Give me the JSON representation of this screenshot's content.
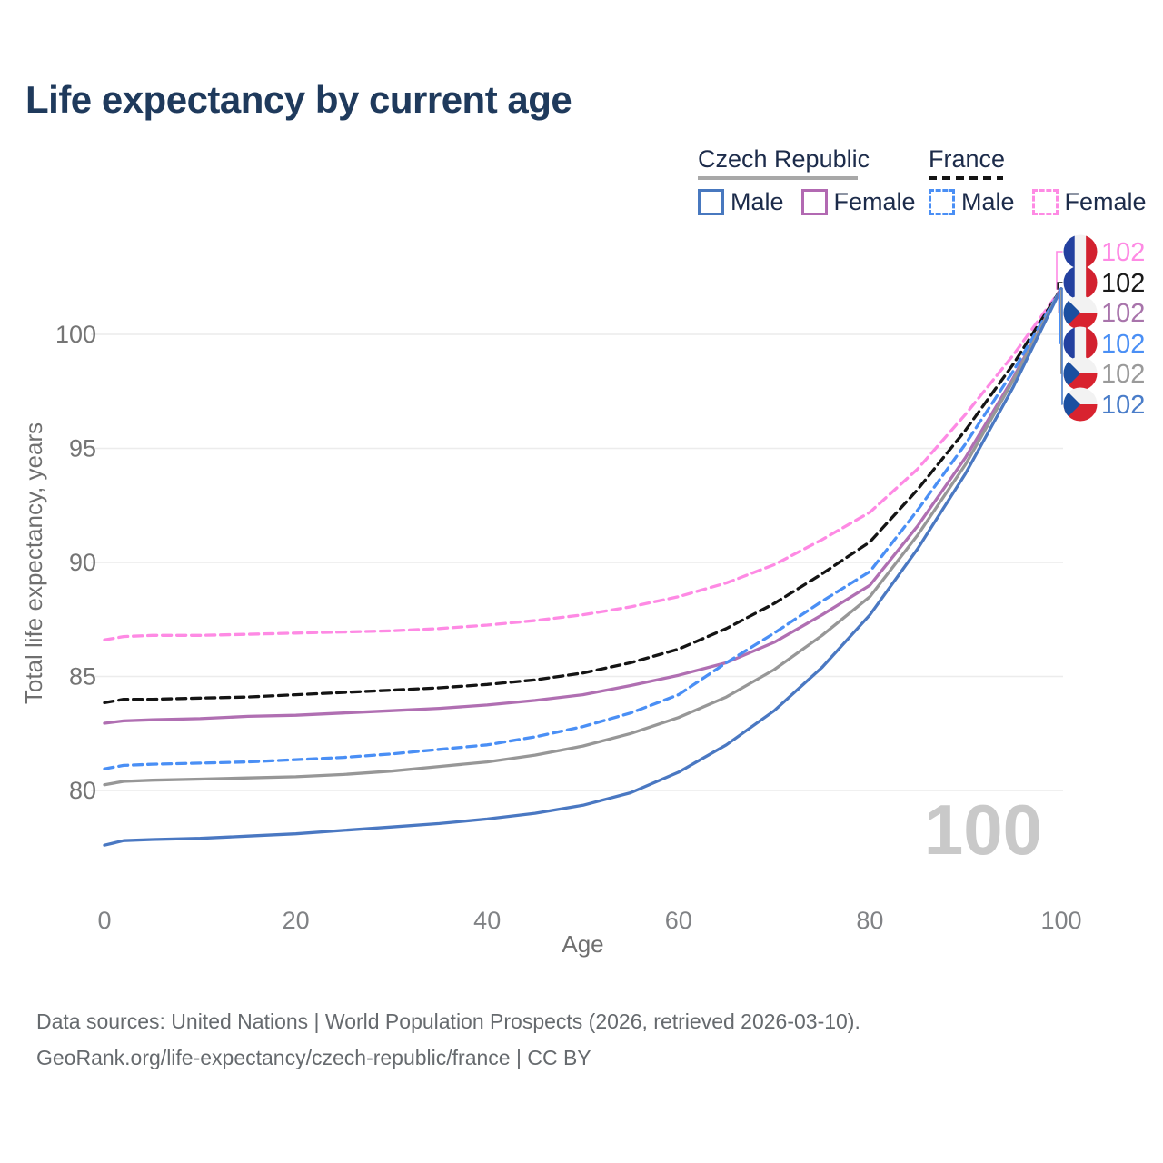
{
  "title": "Life expectancy by current age",
  "legend": {
    "groups": [
      {
        "label": "Czech Republic",
        "underline_style": "solid",
        "underline_color": "#a8a8a8",
        "items": [
          {
            "label": "Male",
            "color": "#4878bf",
            "dashed": false
          },
          {
            "label": "Female",
            "color": "#b269b2",
            "dashed": false
          }
        ]
      },
      {
        "label": "France",
        "underline_style": "dashed",
        "underline_color": "#141414",
        "items": [
          {
            "label": "Male",
            "color": "#4a8ff5",
            "dashed": true
          },
          {
            "label": "Female",
            "color": "#fe8ae4",
            "dashed": true
          }
        ]
      }
    ]
  },
  "watermark": "100",
  "footer": {
    "line1": "Data sources: United Nations | World Population Prospects (2026, retrieved 2026-03-10).",
    "line2": "GeoRank.org/life-expectancy/czech-republic/france | CC BY"
  },
  "chart_data": {
    "type": "line",
    "title": "Life expectancy by current age",
    "xlabel": "Age",
    "ylabel": "Total life expectancy, years",
    "xlim": [
      0,
      100
    ],
    "ylim": [
      76.5,
      103
    ],
    "x_ticks": [
      0,
      20,
      40,
      60,
      80,
      100
    ],
    "y_ticks": [
      80,
      85,
      90,
      95,
      100
    ],
    "grid": "horizontal",
    "legend_position": "top-right",
    "ages": [
      0,
      2,
      5,
      10,
      15,
      20,
      25,
      30,
      35,
      40,
      45,
      50,
      55,
      60,
      65,
      70,
      75,
      80,
      85,
      90,
      95,
      100
    ],
    "series": [
      {
        "name": "France Female",
        "country": "France",
        "sex": "Female",
        "color": "#fe8ae4",
        "dash": true,
        "values": [
          86.6,
          86.75,
          86.8,
          86.8,
          86.85,
          86.9,
          86.95,
          87.0,
          87.1,
          87.25,
          87.45,
          87.7,
          88.05,
          88.5,
          89.1,
          89.9,
          91.0,
          92.2,
          94.1,
          96.5,
          99.1,
          102
        ]
      },
      {
        "name": "France Total",
        "country": "France",
        "sex": "All",
        "color": "#141414",
        "dash": true,
        "values": [
          83.85,
          84.0,
          84.0,
          84.05,
          84.1,
          84.2,
          84.3,
          84.4,
          84.5,
          84.65,
          84.85,
          85.15,
          85.6,
          86.2,
          87.1,
          88.2,
          89.5,
          90.9,
          93.2,
          95.8,
          98.7,
          102
        ]
      },
      {
        "name": "Czech Republic Female",
        "country": "Czech Republic",
        "sex": "Female",
        "color": "#b06fb2",
        "dash": false,
        "values": [
          82.95,
          83.05,
          83.1,
          83.15,
          83.25,
          83.3,
          83.4,
          83.5,
          83.6,
          83.75,
          83.95,
          84.2,
          84.6,
          85.05,
          85.6,
          86.5,
          87.7,
          89.0,
          91.6,
          94.6,
          98.1,
          102
        ]
      },
      {
        "name": "France Male",
        "country": "France",
        "sex": "Male",
        "color": "#4a8ff5",
        "dash": true,
        "values": [
          80.95,
          81.1,
          81.15,
          81.2,
          81.25,
          81.35,
          81.45,
          81.6,
          81.8,
          82.0,
          82.35,
          82.8,
          83.4,
          84.2,
          85.6,
          86.9,
          88.3,
          89.6,
          92.3,
          95.2,
          98.4,
          102
        ]
      },
      {
        "name": "Czech Republic Total",
        "country": "Czech Republic",
        "sex": "All",
        "color": "#979797",
        "dash": false,
        "values": [
          80.25,
          80.4,
          80.45,
          80.5,
          80.55,
          80.6,
          80.7,
          80.85,
          81.05,
          81.25,
          81.55,
          81.95,
          82.5,
          83.2,
          84.1,
          85.3,
          86.8,
          88.5,
          91.2,
          94.3,
          98.0,
          102
        ]
      },
      {
        "name": "Czech Republic Male",
        "country": "Czech Republic",
        "sex": "Male",
        "color": "#4a78c2",
        "dash": false,
        "values": [
          77.6,
          77.8,
          77.85,
          77.9,
          78.0,
          78.1,
          78.25,
          78.4,
          78.55,
          78.75,
          79.0,
          79.35,
          79.9,
          80.8,
          82.0,
          83.5,
          85.4,
          87.7,
          90.6,
          93.9,
          97.7,
          102
        ]
      }
    ],
    "end_labels": [
      {
        "series": "France Female",
        "value": "102",
        "flag": "france",
        "color": "#fe8ae4"
      },
      {
        "series": "France Total",
        "value": "102",
        "flag": "france",
        "color": "#1a1a1a"
      },
      {
        "series": "Czech Republic Female",
        "value": "102",
        "flag": "czech",
        "color": "#a874ab"
      },
      {
        "series": "France Male",
        "value": "102",
        "flag": "france",
        "color": "#4a8ff5"
      },
      {
        "series": "Czech Republic Total",
        "value": "102",
        "flag": "czech",
        "color": "#9a9a9a"
      },
      {
        "series": "Czech Republic Male",
        "value": "102",
        "flag": "czech",
        "color": "#4a7dc9"
      }
    ],
    "flag_colors": {
      "france_blue": "#23409f",
      "france_white": "#f2f2f2",
      "france_red": "#d2212f",
      "czech_blue": "#1b4fa0",
      "czech_white": "#f2f2f2",
      "czech_red": "#d8232f"
    },
    "axis_text_color": "#808285",
    "grid_color": "#ececec",
    "watermark_color": "#c9c9c9"
  }
}
